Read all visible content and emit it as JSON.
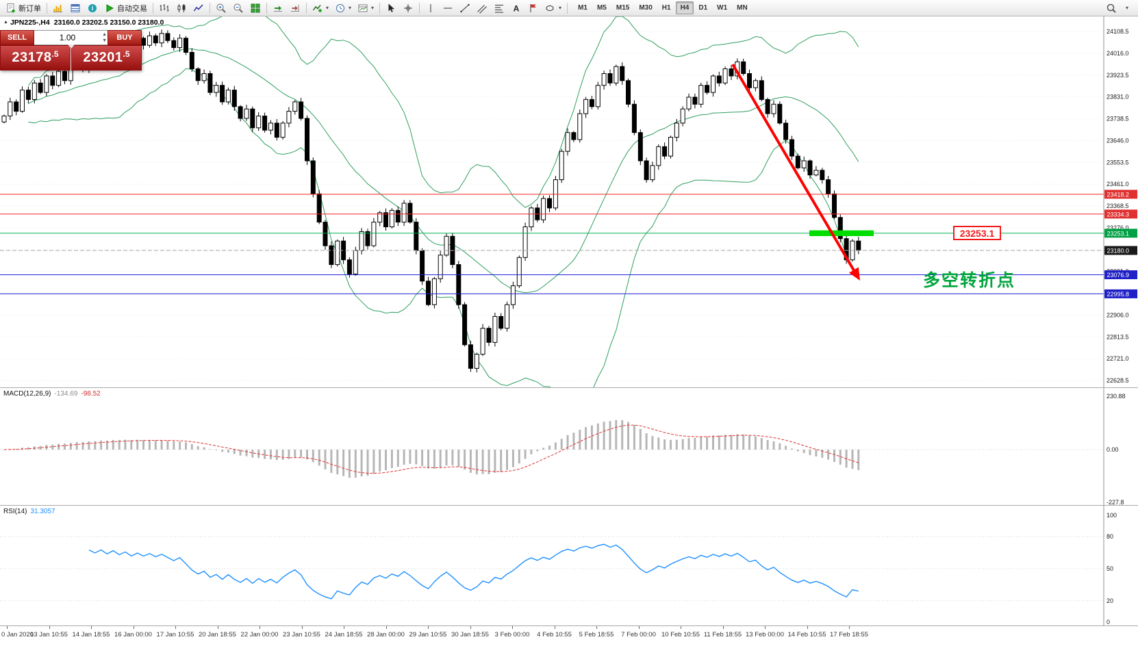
{
  "toolbar": {
    "new_order": "新订单",
    "autotrading": "自动交易",
    "timeframes": [
      "M1",
      "M5",
      "M15",
      "M30",
      "H1",
      "H4",
      "D1",
      "W1",
      "MN"
    ],
    "active_timeframe": "H4"
  },
  "symbol_bar": {
    "symbol": "JPN225-,H4",
    "ohlc": "23160.0 23202.5 23150.0 23180.0"
  },
  "trade_panel": {
    "sell_label": "SELL",
    "buy_label": "BUY",
    "volume": "1.00",
    "sell_price_main": "23178",
    "sell_price_frac": ".5",
    "buy_price_main": "23201",
    "buy_price_frac": ".5"
  },
  "price_axis": {
    "labels": [
      "24108.5",
      "24016.0",
      "23923.5",
      "23831.0",
      "23738.5",
      "23646.0",
      "23553.5",
      "23461.0",
      "23368.5",
      "23276.0",
      "23183.5",
      "23091.0",
      "22998.5",
      "22906.0",
      "22813.5",
      "22721.0",
      "22628.5"
    ]
  },
  "main_chart": {
    "hlines": [
      {
        "price": 23418.2,
        "color": "#f52020",
        "style": "solid",
        "tag": "23418.2",
        "tag_bg": "#e03030"
      },
      {
        "price": 23334.3,
        "color": "#f52020",
        "style": "solid",
        "tag": "23334.3",
        "tag_bg": "#e03030"
      },
      {
        "price": 23253.1,
        "color": "#00b050",
        "style": "solid",
        "tag": "23253.1",
        "tag_bg": "#00a045"
      },
      {
        "price": 23180.0,
        "color": "#ababab",
        "style": "dash",
        "tag": "23180.0",
        "tag_bg": "#1a1a1a"
      },
      {
        "price": 23076.9,
        "color": "#2222dd",
        "style": "solid",
        "tag": "23076.9",
        "tag_bg": "#2020c8"
      },
      {
        "price": 22995.8,
        "color": "#2222dd",
        "style": "solid",
        "tag": "22995.8",
        "tag_bg": "#2020c8"
      }
    ]
  },
  "annotations": {
    "turning_point_text": "多空转折点",
    "price_box": "23253.1",
    "trend_arrow_color": "#ff0000",
    "support_bar_color": "#00dd00"
  },
  "macd": {
    "name": "MACD(12,26,9)",
    "main_value": "-134.69",
    "signal_value": "-98.52",
    "axis": [
      "230.88",
      "0.00",
      "-227.8"
    ]
  },
  "rsi": {
    "name": "RSI(14)",
    "value": "31.3057",
    "axis": [
      "100",
      "80",
      "50",
      "20",
      "0"
    ],
    "levels": [
      80,
      50,
      20
    ]
  },
  "time_axis": {
    "labels": [
      "0 Jan 2020",
      "13 Jan 10:55",
      "14 Jan 18:55",
      "16 Jan 00:00",
      "17 Jan 10:55",
      "20 Jan 18:55",
      "22 Jan 00:00",
      "23 Jan 10:55",
      "24 Jan 18:55",
      "28 Jan 00:00",
      "29 Jan 10:55",
      "30 Jan 18:55",
      "3 Feb 00:00",
      "4 Feb 10:55",
      "5 Feb 18:55",
      "7 Feb 00:00",
      "10 Feb 10:55",
      "11 Feb 18:55",
      "13 Feb 00:00",
      "14 Feb 10:55",
      "17 Feb 18:55"
    ]
  },
  "chart_data": {
    "type": "candlestick",
    "symbol": "JPN225-",
    "timeframe": "H4",
    "closes": [
      23750,
      23810,
      23770,
      23860,
      23820,
      23890,
      23850,
      23920,
      23880,
      23940,
      23900,
      23960,
      23990,
      23950,
      24010,
      23980,
      24040,
      24000,
      24060,
      24020,
      24070,
      24030,
      24080,
      24050,
      24090,
      24060,
      24100,
      24070,
      24040,
      24080,
      24020,
      23950,
      23900,
      23930,
      23850,
      23880,
      23810,
      23860,
      23790,
      23740,
      23780,
      23700,
      23750,
      23690,
      23720,
      23660,
      23720,
      23770,
      23810,
      23740,
      23560,
      23420,
      23300,
      23200,
      23120,
      23220,
      23140,
      23080,
      23180,
      23260,
      23200,
      23300,
      23340,
      23280,
      23350,
      23300,
      23380,
      23300,
      23180,
      23050,
      22950,
      23060,
      23160,
      23240,
      23120,
      22950,
      22780,
      22680,
      22740,
      22850,
      22790,
      22900,
      22850,
      22950,
      23030,
      23150,
      23280,
      23360,
      23310,
      23400,
      23360,
      23480,
      23600,
      23680,
      23650,
      23760,
      23820,
      23790,
      23880,
      23930,
      23890,
      23960,
      23900,
      23800,
      23680,
      23560,
      23480,
      23540,
      23620,
      23580,
      23660,
      23720,
      23780,
      23830,
      23800,
      23880,
      23850,
      23920,
      23890,
      23950,
      23920,
      23980,
      23930,
      23870,
      23900,
      23820,
      23760,
      23800,
      23720,
      23650,
      23580,
      23530,
      23560,
      23500,
      23520,
      23480,
      23420,
      23320,
      23230,
      23140,
      23220,
      23180
    ],
    "bollinger": {
      "period": 20,
      "deviation": 2
    },
    "macd": {
      "fast": 12,
      "slow": 26,
      "signal": 9
    },
    "rsi": {
      "period": 14
    },
    "ylim": [
      22628.5,
      24108.5
    ]
  }
}
